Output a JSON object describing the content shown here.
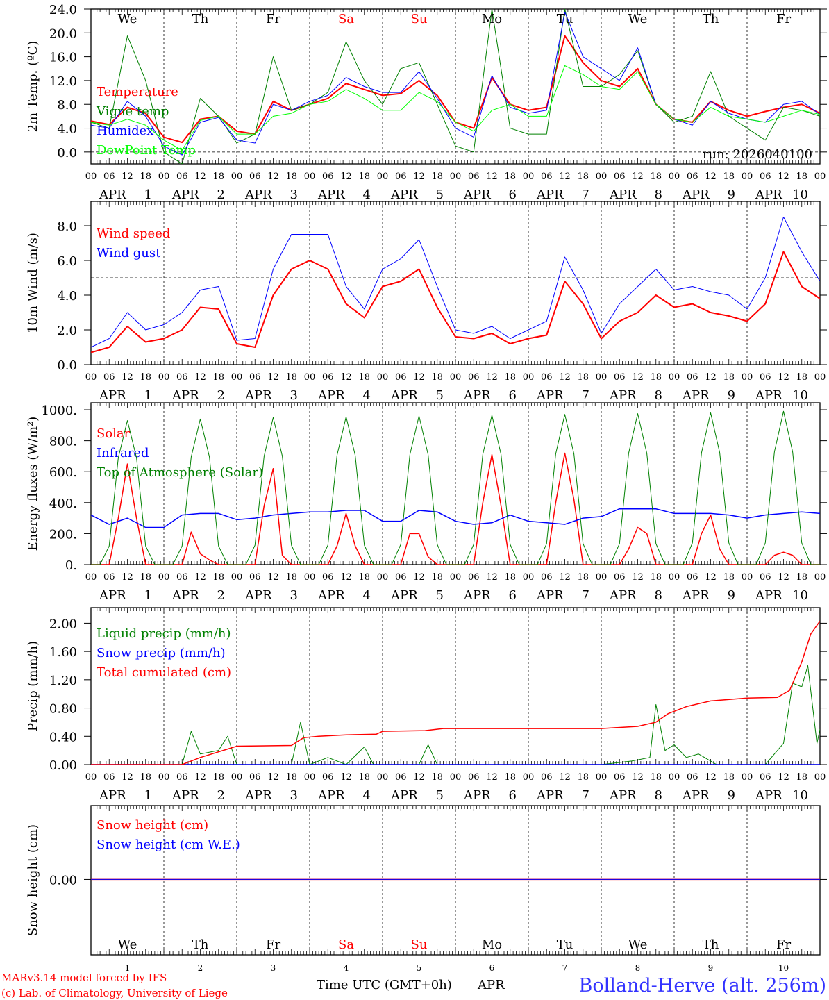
{
  "axis": {
    "hour_labels": [
      "00",
      "06",
      "12",
      "18"
    ],
    "month": "APR",
    "days": [
      "1",
      "2",
      "3",
      "4",
      "5",
      "6",
      "7",
      "8",
      "9",
      "10"
    ],
    "weekdays": [
      "We",
      "Th",
      "Fr",
      "Sa",
      "Su",
      "Mo",
      "Tu",
      "We",
      "Th",
      "Fr"
    ],
    "weekend_indexes": [
      3,
      4
    ],
    "weekend_color": "#ff0000",
    "xlabel": "Time UTC (GMT+0h)",
    "xlabel_month": "APR"
  },
  "chart_data": [
    {
      "type": "line",
      "ylabel": "2m Temp. (ºC)",
      "ylim": [
        -2,
        24
      ],
      "ytick_values": [
        24,
        20,
        16,
        12,
        8,
        4,
        0
      ],
      "ytick_labels": [
        "24.0",
        "20.0",
        "16.0",
        "12.0",
        "8.0",
        "4.0",
        "0.0"
      ],
      "hline": 0,
      "annotation": "run: 2026040100",
      "xlim_hours": [
        0,
        240
      ],
      "series": [
        {
          "name": "Temperature",
          "color": "#ff0000",
          "width": 2,
          "step_hours": 6,
          "values": [
            5.2,
            4.6,
            7.5,
            6.5,
            2.5,
            1.6,
            5.5,
            6.0,
            3.5,
            3.0,
            8.5,
            7.0,
            8.0,
            9.0,
            11.5,
            10.5,
            9.5,
            9.8,
            12.0,
            9.5,
            5.0,
            4.0,
            12.5,
            8.0,
            7.0,
            7.5,
            19.5,
            15.0,
            12.0,
            11.0,
            14.0,
            8.0,
            5.5,
            5.0,
            8.5,
            7.0,
            6.0,
            6.8,
            7.5,
            8.0,
            6.5
          ]
        },
        {
          "name": "Vigne temp",
          "color": "#008000",
          "width": 1,
          "step_hours": 6,
          "values": [
            5.0,
            4.0,
            19.5,
            12.0,
            0.0,
            -2.0,
            9.0,
            6.0,
            1.5,
            3.0,
            16.0,
            7.0,
            8.0,
            10.0,
            18.5,
            12.0,
            8.0,
            14.0,
            15.0,
            8.0,
            1.0,
            0.0,
            24.0,
            4.0,
            3.0,
            3.0,
            24.0,
            11.0,
            11.0,
            13.0,
            17.0,
            8.0,
            5.0,
            6.0,
            13.5,
            6.0,
            4.0,
            2.0,
            7.5,
            7.0,
            6.0
          ]
        },
        {
          "name": "Humidex",
          "color": "#0000ff",
          "width": 1,
          "step_hours": 6,
          "values": [
            4.5,
            4.0,
            8.5,
            6.0,
            1.0,
            -0.5,
            5.0,
            5.8,
            2.0,
            1.5,
            8.0,
            7.0,
            8.5,
            9.5,
            12.5,
            11.0,
            10.0,
            10.0,
            13.5,
            9.0,
            4.0,
            2.5,
            12.8,
            7.5,
            6.5,
            7.0,
            23.5,
            16.0,
            14.0,
            12.0,
            17.5,
            8.0,
            5.5,
            4.5,
            8.5,
            6.5,
            5.5,
            5.0,
            8.0,
            8.5,
            6.3
          ]
        },
        {
          "name": "DewPoint Temp",
          "color": "#00ff00",
          "width": 1,
          "step_hours": 6,
          "values": [
            5.0,
            4.5,
            5.5,
            4.5,
            2.0,
            0.3,
            5.3,
            6.0,
            3.0,
            3.0,
            6.0,
            6.5,
            8.0,
            8.5,
            10.5,
            9.0,
            7.0,
            7.0,
            10.0,
            8.5,
            5.0,
            3.5,
            7.0,
            8.0,
            6.0,
            6.0,
            14.5,
            13.0,
            11.0,
            10.5,
            13.5,
            8.0,
            5.5,
            5.0,
            7.5,
            6.0,
            5.5,
            5.0,
            6.0,
            7.0,
            6.3
          ]
        }
      ]
    },
    {
      "type": "line",
      "ylabel": "10m Wind (m/s)",
      "ylim": [
        0,
        9.4
      ],
      "ytick_values": [
        8,
        6,
        4,
        2,
        0
      ],
      "ytick_labels": [
        "8.0",
        "6.0",
        "4.0",
        "2.0",
        "0.0"
      ],
      "hline": 5,
      "xlim_hours": [
        0,
        240
      ],
      "series": [
        {
          "name": "Wind speed",
          "color": "#ff0000",
          "width": 2,
          "step_hours": 6,
          "values": [
            0.7,
            1.0,
            2.2,
            1.3,
            1.5,
            2.0,
            3.3,
            3.2,
            1.2,
            1.0,
            4.0,
            5.5,
            6.0,
            5.5,
            3.5,
            2.7,
            4.5,
            4.8,
            5.5,
            3.3,
            1.6,
            1.5,
            1.8,
            1.2,
            1.5,
            1.7,
            4.8,
            3.5,
            1.5,
            2.5,
            3.0,
            4.0,
            3.3,
            3.5,
            3.0,
            2.8,
            2.5,
            3.5,
            6.5,
            4.5,
            3.8
          ]
        },
        {
          "name": "Wind gust",
          "color": "#0000ff",
          "width": 1,
          "step_hours": 6,
          "values": [
            1.0,
            1.5,
            3.0,
            2.0,
            2.3,
            3.0,
            4.3,
            4.5,
            1.4,
            1.5,
            5.5,
            7.5,
            7.5,
            7.5,
            4.5,
            3.2,
            5.5,
            6.1,
            7.2,
            4.5,
            2.0,
            1.8,
            2.2,
            1.5,
            2.0,
            2.5,
            6.2,
            4.3,
            1.8,
            3.5,
            4.5,
            5.5,
            4.3,
            4.5,
            4.2,
            4.0,
            3.2,
            5.0,
            8.5,
            6.5,
            4.8
          ]
        }
      ]
    },
    {
      "type": "line",
      "ylabel": "Energy fluxes (W/m²)",
      "ylim": [
        0,
        1045
      ],
      "ytick_values": [
        1000,
        800,
        600,
        400,
        200,
        0
      ],
      "ytick_labels": [
        "1000.",
        "800.",
        "600.",
        "400.",
        "200.",
        "0."
      ],
      "xlim_hours": [
        0,
        240
      ],
      "series": [
        {
          "name": "Solar",
          "color": "#ff0000",
          "width": 1.5,
          "step_hours": 3,
          "values": [
            0,
            0,
            0,
            300,
            650,
            300,
            0,
            0,
            0,
            0,
            0,
            210,
            70,
            30,
            0,
            0,
            0,
            0,
            0,
            380,
            620,
            60,
            0,
            0,
            0,
            0,
            0,
            120,
            330,
            120,
            0,
            0,
            0,
            0,
            0,
            200,
            200,
            50,
            0,
            0,
            0,
            0,
            0,
            400,
            710,
            380,
            0,
            0,
            0,
            0,
            0,
            400,
            720,
            420,
            0,
            0,
            0,
            0,
            0,
            100,
            240,
            200,
            0,
            0,
            0,
            0,
            0,
            200,
            320,
            100,
            0,
            0,
            0,
            0,
            0,
            60,
            80,
            60,
            0,
            0,
            0
          ]
        },
        {
          "name": "Infrared",
          "color": "#0000ff",
          "width": 1.5,
          "step_hours": 6,
          "values": [
            320,
            260,
            300,
            240,
            240,
            320,
            330,
            330,
            290,
            300,
            320,
            330,
            340,
            340,
            350,
            350,
            280,
            280,
            350,
            340,
            280,
            260,
            270,
            320,
            280,
            270,
            260,
            300,
            310,
            360,
            360,
            360,
            330,
            330,
            330,
            320,
            300,
            320,
            330,
            340,
            330
          ]
        },
        {
          "name": "Top of Atmosphere (Solar)",
          "color": "#008000",
          "width": 1,
          "step_hours": 3,
          "values": [
            0,
            0,
            120,
            690,
            930,
            690,
            120,
            0,
            0,
            0,
            120,
            695,
            940,
            695,
            120,
            0,
            0,
            0,
            125,
            700,
            950,
            700,
            125,
            0,
            0,
            0,
            125,
            705,
            955,
            705,
            125,
            0,
            0,
            0,
            130,
            710,
            960,
            710,
            130,
            0,
            0,
            0,
            130,
            712,
            965,
            712,
            130,
            0,
            0,
            0,
            135,
            715,
            970,
            715,
            135,
            0,
            0,
            0,
            135,
            718,
            975,
            718,
            135,
            0,
            0,
            0,
            140,
            722,
            980,
            722,
            140,
            0,
            0,
            0,
            140,
            728,
            990,
            728,
            140,
            0,
            0
          ]
        }
      ]
    },
    {
      "type": "line",
      "ylabel": "Precip (mm/h)",
      "ylim": [
        0,
        2.22
      ],
      "ytick_values": [
        2.0,
        1.6,
        1.2,
        0.8,
        0.4,
        0
      ],
      "ytick_labels": [
        "2.00",
        "1.60",
        "1.20",
        "0.80",
        "0.40",
        "0.00"
      ],
      "xlim_hours": [
        0,
        240
      ],
      "series": [
        {
          "name": "Liquid precip (mm/h)",
          "color": "#008000",
          "width": 1,
          "points": [
            [
              0,
              0
            ],
            [
              30,
              0
            ],
            [
              33,
              0.47
            ],
            [
              36,
              0.15
            ],
            [
              42,
              0.2
            ],
            [
              45,
              0.4
            ],
            [
              48,
              0
            ],
            [
              66,
              0
            ],
            [
              69,
              0.6
            ],
            [
              72,
              0
            ],
            [
              78,
              0.1
            ],
            [
              84,
              0
            ],
            [
              90,
              0.25
            ],
            [
              93,
              0
            ],
            [
              108,
              0
            ],
            [
              111,
              0.28
            ],
            [
              114,
              0
            ],
            [
              168,
              0
            ],
            [
              178,
              0.05
            ],
            [
              184,
              0.1
            ],
            [
              186,
              0.85
            ],
            [
              189,
              0.2
            ],
            [
              192,
              0.28
            ],
            [
              196,
              0.1
            ],
            [
              200,
              0.15
            ],
            [
              206,
              0
            ],
            [
              222,
              0
            ],
            [
              228,
              0.3
            ],
            [
              231,
              1.15
            ],
            [
              234,
              1.1
            ],
            [
              236,
              1.4
            ],
            [
              239,
              0.3
            ],
            [
              240,
              0.5
            ]
          ]
        },
        {
          "name": "Snow precip (mm/h)",
          "color": "#0000ff",
          "width": 1.5,
          "points": [
            [
              0,
              0
            ],
            [
              240,
              0
            ]
          ]
        },
        {
          "name": "Total cumulated (cm)",
          "color": "#ff0000",
          "width": 1.5,
          "points": [
            [
              0,
              0
            ],
            [
              30,
              0
            ],
            [
              36,
              0.1
            ],
            [
              45,
              0.22
            ],
            [
              48,
              0.26
            ],
            [
              66,
              0.27
            ],
            [
              70,
              0.38
            ],
            [
              75,
              0.4
            ],
            [
              84,
              0.42
            ],
            [
              94,
              0.43
            ],
            [
              96,
              0.47
            ],
            [
              110,
              0.48
            ],
            [
              116,
              0.51
            ],
            [
              168,
              0.51
            ],
            [
              180,
              0.54
            ],
            [
              186,
              0.6
            ],
            [
              190,
              0.72
            ],
            [
              196,
              0.82
            ],
            [
              204,
              0.9
            ],
            [
              216,
              0.94
            ],
            [
              226,
              0.95
            ],
            [
              230,
              1.05
            ],
            [
              234,
              1.45
            ],
            [
              237,
              1.85
            ],
            [
              240,
              2.03
            ]
          ]
        }
      ]
    },
    {
      "type": "line",
      "ylabel": "Snow height (cm)",
      "ylim": [
        -1.02,
        1
      ],
      "ytick_values": [
        0
      ],
      "ytick_labels": [
        "0.00"
      ],
      "xlim_hours": [
        0,
        240
      ],
      "series": [
        {
          "name": "Snow height (cm)",
          "color": "#ff0000",
          "width": 1.5,
          "points": [
            [
              0,
              0
            ],
            [
              240,
              0
            ]
          ]
        },
        {
          "name": "Snow height (cm W.E.)",
          "color": "#0000ff",
          "width": 1,
          "points": [
            [
              0,
              0
            ],
            [
              240,
              0
            ]
          ]
        }
      ]
    }
  ],
  "footer": {
    "model": "MARv3.14 model forced by IFS",
    "credit": "(c) Lab. of Climatology, University of Liege",
    "credit_color": "#ff0000",
    "station": "Bolland-Herve (alt. 256m)",
    "station_color": "#3333ff"
  }
}
